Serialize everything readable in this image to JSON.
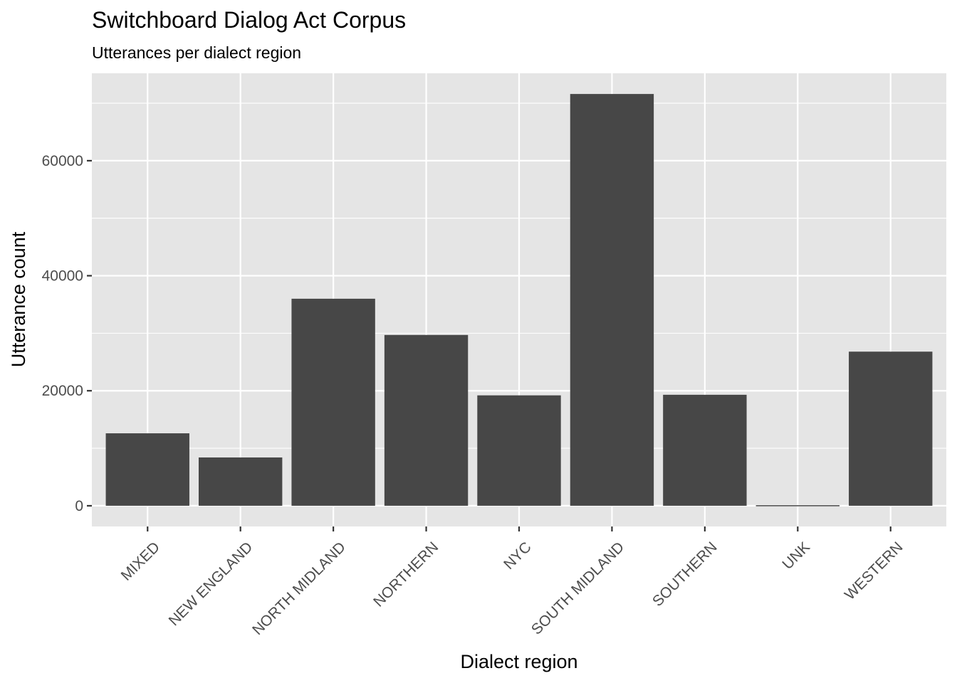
{
  "chart_data": {
    "type": "bar",
    "title": "Switchboard Dialog Act Corpus",
    "subtitle": "Utterances per dialect region",
    "xlabel": "Dialect region",
    "ylabel": "Utterance count",
    "categories": [
      "MIXED",
      "NEW ENGLAND",
      "NORTH MIDLAND",
      "NORTHERN",
      "NYC",
      "SOUTH MIDLAND",
      "SOUTHERN",
      "UNK",
      "WESTERN"
    ],
    "values": [
      12600,
      8400,
      36000,
      29700,
      19200,
      71600,
      19300,
      100,
      26800
    ],
    "yticks": [
      0,
      20000,
      40000,
      60000
    ],
    "ytick_labels": [
      "0",
      "20000",
      "40000",
      "60000"
    ],
    "ylim": [
      -3600,
      75200
    ],
    "grid": true,
    "legend": "none",
    "colors": {
      "bar": "#474747",
      "panel": "#e5e5e5",
      "grid": "#ffffff",
      "tick_label": "#4d4d4d",
      "tick_mark": "#333333"
    }
  }
}
